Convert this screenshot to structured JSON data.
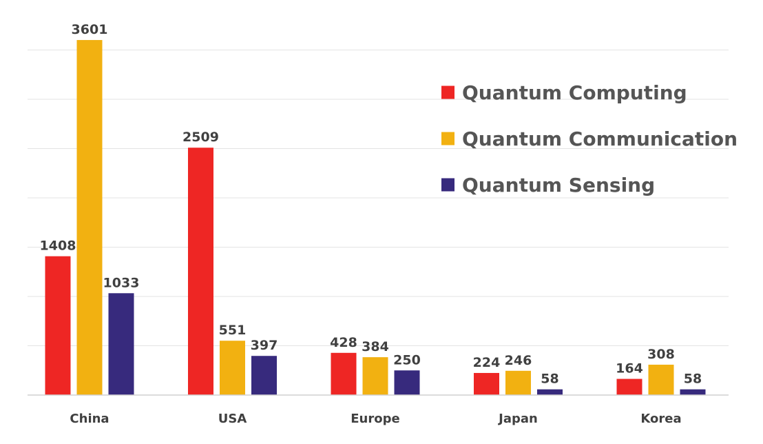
{
  "chart_data": {
    "type": "bar",
    "categories": [
      "China",
      "USA",
      "Europe",
      "Japan",
      "Korea"
    ],
    "series": [
      {
        "name": "Quantum Computing",
        "color": "#ee2624",
        "values": [
          1408,
          2509,
          428,
          224,
          164
        ]
      },
      {
        "name": "Quantum Communication",
        "color": "#f2b111",
        "values": [
          3601,
          551,
          384,
          246,
          308
        ]
      },
      {
        "name": "Quantum Sensing",
        "color": "#372a7d",
        "values": [
          1033,
          397,
          250,
          58,
          58
        ]
      }
    ],
    "title": "",
    "xlabel": "",
    "ylabel": "",
    "ylim": [
      0,
      3500
    ],
    "grid": true,
    "legend_position": "top-right",
    "data_labels": true
  }
}
